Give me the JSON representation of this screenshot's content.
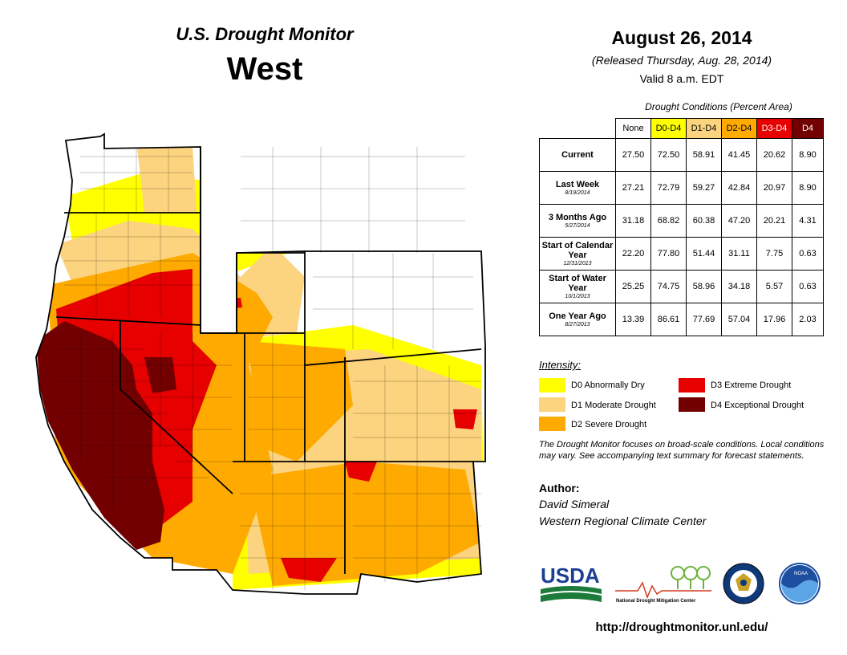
{
  "header": {
    "product": "U.S. Drought Monitor",
    "region": "West"
  },
  "date": {
    "main": "August 26, 2014",
    "released": "(Released Thursday, Aug. 28, 2014)",
    "valid": "Valid  8 a.m. EDT"
  },
  "conditions": {
    "caption": "Drought Conditions (Percent Area)",
    "columns": [
      {
        "label": "None",
        "color": "#ffffff"
      },
      {
        "label": "D0-D4",
        "color": "#ffff00"
      },
      {
        "label": "D1-D4",
        "color": "#fcd37f"
      },
      {
        "label": "D2-D4",
        "color": "#ffaa00"
      },
      {
        "label": "D3-D4",
        "color": "#e60000"
      },
      {
        "label": "D4",
        "color": "#730000"
      }
    ],
    "rows": [
      {
        "label": "Current",
        "sub": "",
        "values": [
          "27.50",
          "72.50",
          "58.91",
          "41.45",
          "20.62",
          "8.90"
        ]
      },
      {
        "label": "Last Week",
        "sub": "8/19/2014",
        "values": [
          "27.21",
          "72.79",
          "59.27",
          "42.84",
          "20.97",
          "8.90"
        ]
      },
      {
        "label": "3 Months Ago",
        "sub": "5/27/2014",
        "values": [
          "31.18",
          "68.82",
          "60.38",
          "47.20",
          "20.21",
          "4.31"
        ]
      },
      {
        "label": "Start of Calendar Year",
        "sub": "12/31/2013",
        "values": [
          "22.20",
          "77.80",
          "51.44",
          "31.11",
          "7.75",
          "0.63"
        ]
      },
      {
        "label": "Start of Water Year",
        "sub": "10/1/2013",
        "values": [
          "25.25",
          "74.75",
          "58.96",
          "34.18",
          "5.57",
          "0.63"
        ]
      },
      {
        "label": "One Year Ago",
        "sub": "8/27/2013",
        "values": [
          "13.39",
          "86.61",
          "77.69",
          "57.04",
          "17.96",
          "2.03"
        ]
      }
    ]
  },
  "legend": {
    "title": "Intensity:",
    "items": [
      {
        "label": "D0 Abnormally Dry",
        "color": "#ffff00"
      },
      {
        "label": "D1 Moderate Drought",
        "color": "#fcd37f"
      },
      {
        "label": "D2 Severe Drought",
        "color": "#ffaa00"
      },
      {
        "label": "D3 Extreme Drought",
        "color": "#e60000"
      },
      {
        "label": "D4 Exceptional Drought",
        "color": "#730000"
      }
    ]
  },
  "note": "The Drought Monitor focuses on broad-scale conditions. Local conditions may vary. See accompanying text summary for forecast statements.",
  "author": {
    "label": "Author:",
    "name": "David Simeral",
    "org": "Western Regional Climate Center"
  },
  "logos": {
    "usda": "USDA",
    "ndmc_line": "National Drought Mitigation Center",
    "noaa": "NOAA"
  },
  "url": "http://droughtmonitor.unl.edu/"
}
